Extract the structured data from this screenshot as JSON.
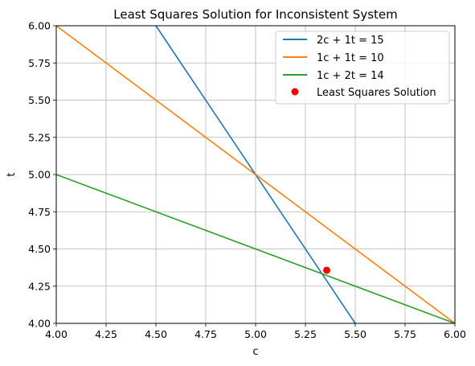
{
  "chart_data": {
    "type": "line",
    "title": "Least Squares Solution for Inconsistent System",
    "xlabel": "c",
    "ylabel": "t",
    "xlim": [
      4.0,
      6.0
    ],
    "ylim": [
      4.0,
      6.0
    ],
    "x_ticks": [
      "4.00",
      "4.25",
      "4.50",
      "4.75",
      "5.00",
      "5.25",
      "5.50",
      "5.75",
      "6.00"
    ],
    "y_ticks": [
      "4.00",
      "4.25",
      "4.50",
      "4.75",
      "5.00",
      "5.25",
      "5.50",
      "5.75",
      "6.00"
    ],
    "grid": true,
    "legend_position": "top-right",
    "series": [
      {
        "name": "2c + 1t = 15",
        "color": "#1f77b4",
        "points": [
          [
            4.5,
            6.0
          ],
          [
            5.5,
            4.0
          ]
        ]
      },
      {
        "name": "1c + 1t = 10",
        "color": "#ff7f0e",
        "points": [
          [
            4.0,
            6.0
          ],
          [
            6.0,
            4.0
          ]
        ]
      },
      {
        "name": "1c + 2t = 14",
        "color": "#2ca02c",
        "points": [
          [
            4.0,
            5.0
          ],
          [
            6.0,
            4.0
          ]
        ]
      }
    ],
    "point": {
      "name": "Least Squares Solution",
      "color": "#ff0000",
      "x": 5.357,
      "y": 4.357
    }
  }
}
